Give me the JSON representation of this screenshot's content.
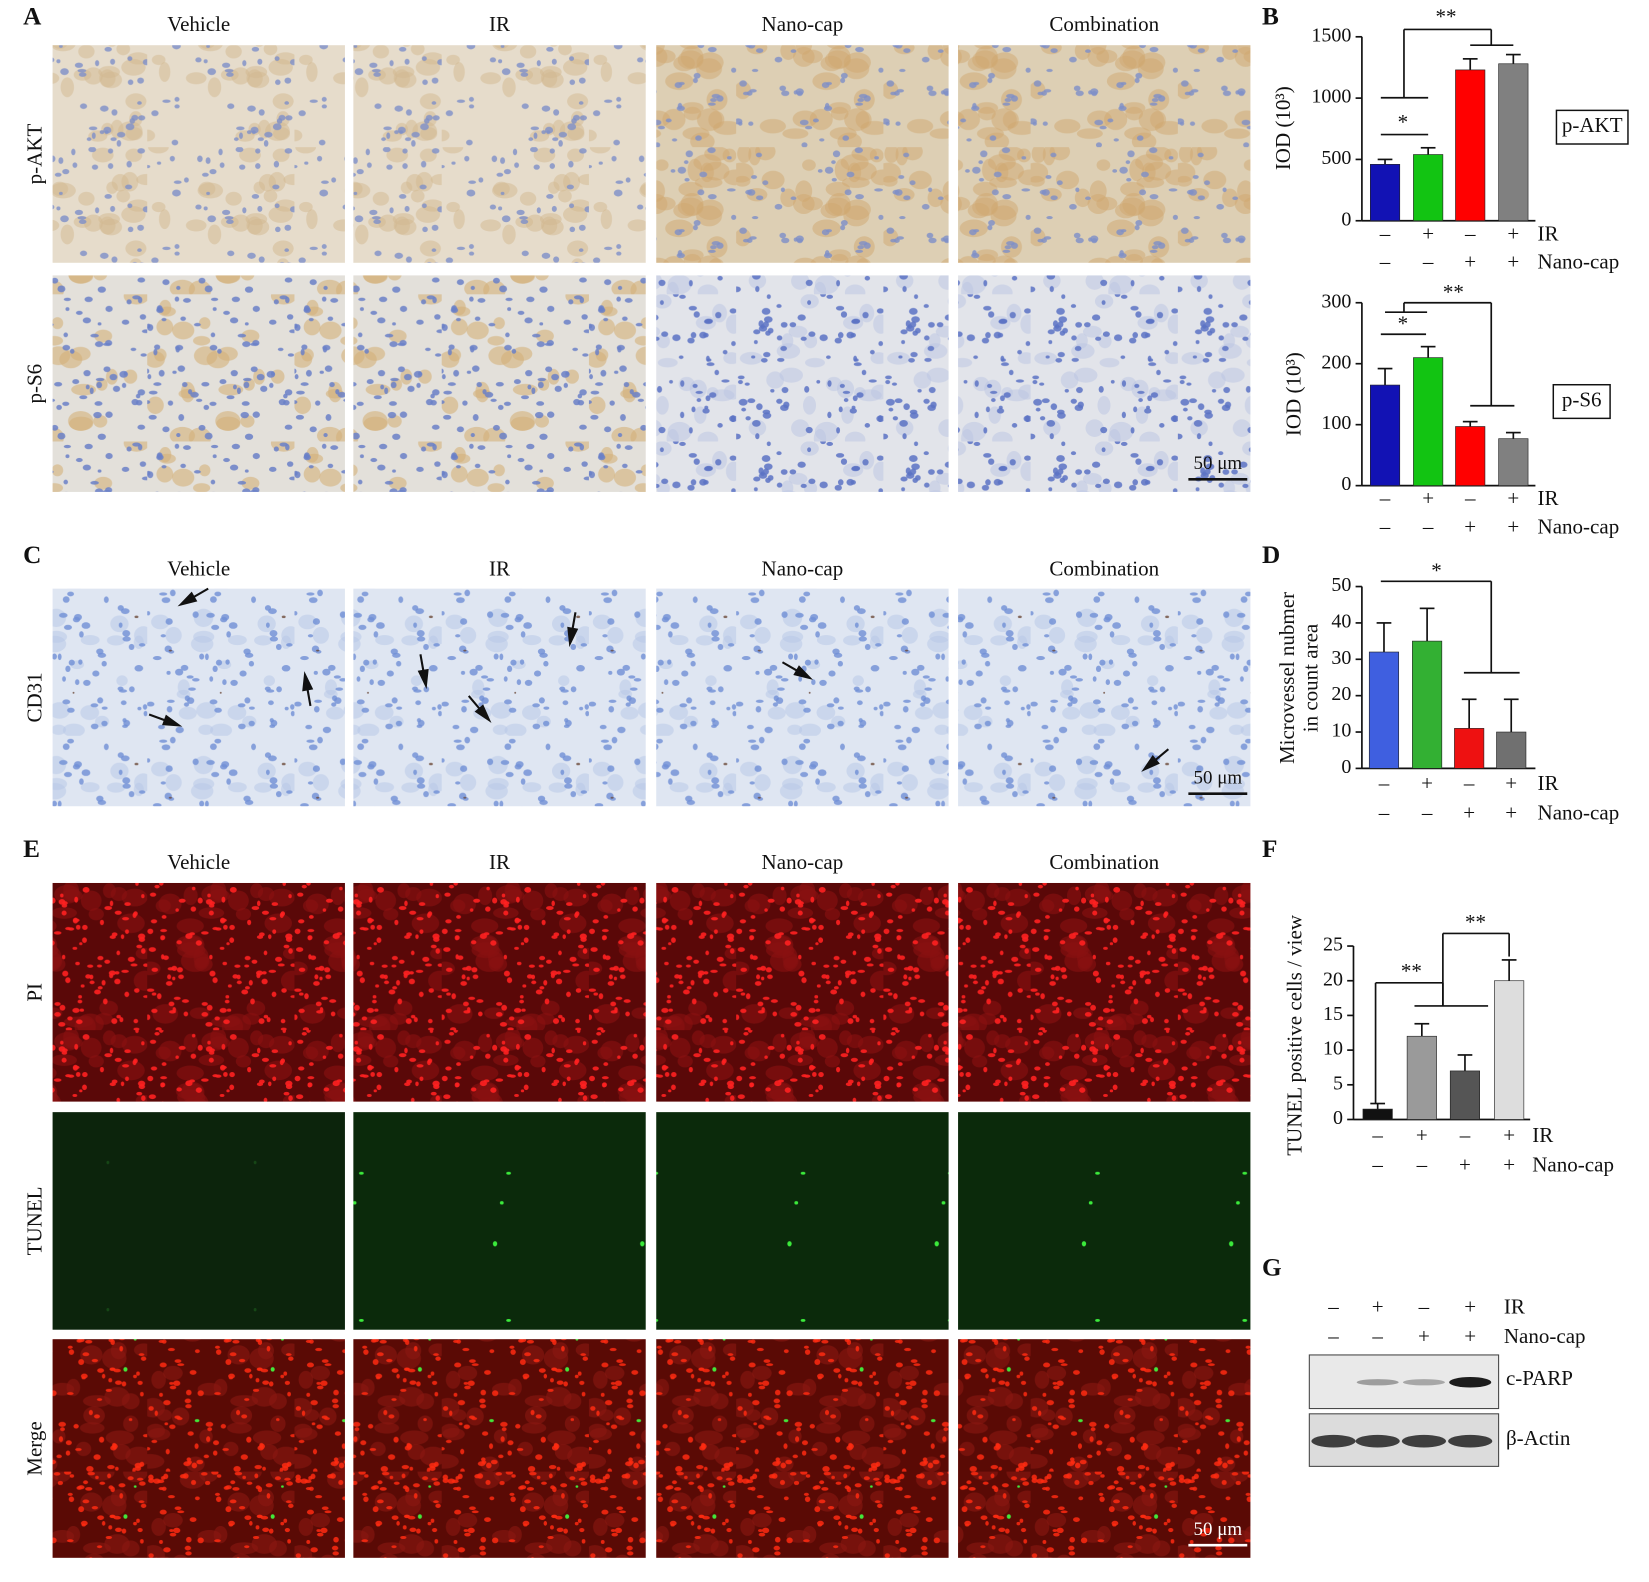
{
  "panels": {
    "A": {
      "label": "A",
      "columns": [
        "Vehicle",
        "IR",
        "Nano-cap",
        "Combination"
      ],
      "rows": [
        "p-AKT",
        "p-S6"
      ],
      "scale_bar": "50 μm"
    },
    "B": {
      "label": "B"
    },
    "C": {
      "label": "C",
      "columns": [
        "Vehicle",
        "IR",
        "Nano-cap",
        "Combination"
      ],
      "rows": [
        "CD31"
      ],
      "scale_bar": "50 μm"
    },
    "D": {
      "label": "D"
    },
    "E": {
      "label": "E",
      "columns": [
        "Vehicle",
        "IR",
        "Nano-cap",
        "Combination"
      ],
      "rows": [
        "PI",
        "TUNEL",
        "Merge"
      ],
      "scale_bar": "50 μm"
    },
    "F": {
      "label": "F"
    },
    "G": {
      "label": "G",
      "conditions": [
        {
          "name": "IR",
          "signs": [
            "–",
            "+",
            "–",
            "+"
          ]
        },
        {
          "name": "Nano-cap",
          "signs": [
            "–",
            "–",
            "+",
            "+"
          ]
        }
      ],
      "bands": [
        "c-PARP",
        "β-Actin"
      ]
    }
  },
  "chart_data": [
    {
      "type": "bar",
      "y_label": [
        "IOD (10³)"
      ],
      "box_label": "p-AKT",
      "conditions": [
        {
          "name": "IR",
          "signs": [
            "–",
            "+",
            "–",
            "+"
          ]
        },
        {
          "name": "Nano-cap",
          "signs": [
            "–",
            "–",
            "+",
            "+"
          ]
        }
      ],
      "values": [
        460,
        540,
        1230,
        1280
      ],
      "errors": [
        40,
        55,
        90,
        75
      ],
      "colors": [
        "#1212b4",
        "#12c412",
        "#ff0000",
        "#808080"
      ],
      "ylim": [
        0,
        1500
      ],
      "yticks": [
        0,
        500,
        1000,
        1500
      ],
      "annotations": [
        "*",
        "**"
      ]
    },
    {
      "type": "bar",
      "y_label": [
        "IOD (10³)"
      ],
      "box_label": "p-S6",
      "conditions": [
        {
          "name": "IR",
          "signs": [
            "–",
            "+",
            "–",
            "+"
          ]
        },
        {
          "name": "Nano-cap",
          "signs": [
            "–",
            "–",
            "+",
            "+"
          ]
        }
      ],
      "values": [
        165,
        210,
        97,
        77
      ],
      "errors": [
        27,
        18,
        8,
        10
      ],
      "colors": [
        "#1212b4",
        "#12c412",
        "#ff0000",
        "#808080"
      ],
      "ylim": [
        0,
        300
      ],
      "yticks": [
        0,
        100,
        200,
        300
      ],
      "annotations": [
        "*",
        "**"
      ]
    },
    {
      "type": "bar",
      "y_label": [
        "Microvessel nubmer",
        "in count area"
      ],
      "conditions": [
        {
          "name": "IR",
          "signs": [
            "–",
            "+",
            "–",
            "+"
          ]
        },
        {
          "name": "Nano-cap",
          "signs": [
            "–",
            "–",
            "+",
            "+"
          ]
        }
      ],
      "values": [
        32,
        35,
        11,
        10
      ],
      "errors": [
        8,
        9,
        8,
        9
      ],
      "colors": [
        "#3f5fe0",
        "#33b033",
        "#ee1111",
        "#707070"
      ],
      "ylim": [
        0,
        50
      ],
      "yticks": [
        0,
        10,
        20,
        30,
        40,
        50
      ],
      "annotations": [
        "*"
      ]
    },
    {
      "type": "bar",
      "y_label": [
        "TUNEL positive cells / view"
      ],
      "conditions": [
        {
          "name": "IR",
          "signs": [
            "–",
            "+",
            "–",
            "+"
          ]
        },
        {
          "name": "Nano-cap",
          "signs": [
            "–",
            "–",
            "+",
            "+"
          ]
        }
      ],
      "values": [
        1.5,
        12,
        7,
        20
      ],
      "errors": [
        0.8,
        1.8,
        2.3,
        3
      ],
      "colors": [
        "#111111",
        "#9a9a9a",
        "#555555",
        "#dddddd"
      ],
      "ylim": [
        0,
        25
      ],
      "yticks": [
        0,
        5,
        10,
        15,
        20,
        25
      ],
      "annotations": [
        "**",
        "**"
      ]
    }
  ]
}
